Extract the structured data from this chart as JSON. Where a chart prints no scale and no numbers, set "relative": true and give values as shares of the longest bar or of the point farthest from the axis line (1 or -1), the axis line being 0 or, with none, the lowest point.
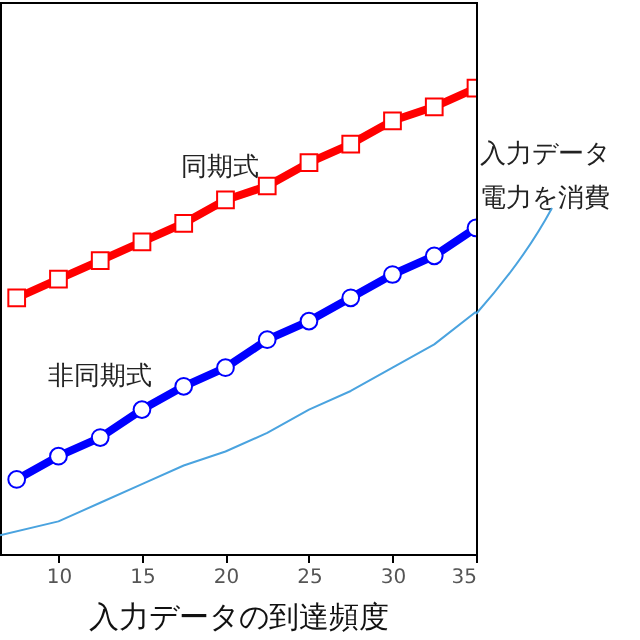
{
  "chart_data": {
    "type": "line",
    "relative": true,
    "xlabel": "入力データの到達頻度",
    "xlim": [
      6.5,
      35
    ],
    "xticks": [
      10,
      15,
      20,
      25,
      30,
      35
    ],
    "line_style": "solid",
    "annotations": [
      "入力データ",
      "電力を消費"
    ],
    "series": [
      {
        "name": "同期式",
        "color": "#ff0000",
        "marker": "square",
        "x": [
          7.5,
          10,
          12.5,
          15,
          17.5,
          20,
          22.5,
          25,
          27.5,
          30,
          32.5,
          35
        ],
        "values": [
          0.55,
          0.59,
          0.63,
          0.67,
          0.71,
          0.76,
          0.79,
          0.84,
          0.88,
          0.93,
          0.96,
          1
        ]
      },
      {
        "name": "非同期式",
        "color": "#0000ff",
        "marker": "circle",
        "x": [
          7.5,
          10,
          12.5,
          15,
          17.5,
          20,
          22.5,
          25,
          27.5,
          30,
          32.5,
          35
        ],
        "values": [
          0.16,
          0.21,
          0.25,
          0.31,
          0.36,
          0.4,
          0.46,
          0.5,
          0.55,
          0.6,
          0.64,
          0.7
        ]
      },
      {
        "color": "#4aa3df",
        "marker": "none",
        "x": [
          6.5,
          10,
          12.5,
          15,
          17.5,
          20,
          22.5,
          25,
          27.5,
          30,
          32.5,
          35
        ],
        "values": [
          0.04,
          0.07,
          0.11,
          0.15,
          0.19,
          0.22,
          0.26,
          0.31,
          0.35,
          0.4,
          0.45,
          0.52
        ]
      }
    ]
  }
}
